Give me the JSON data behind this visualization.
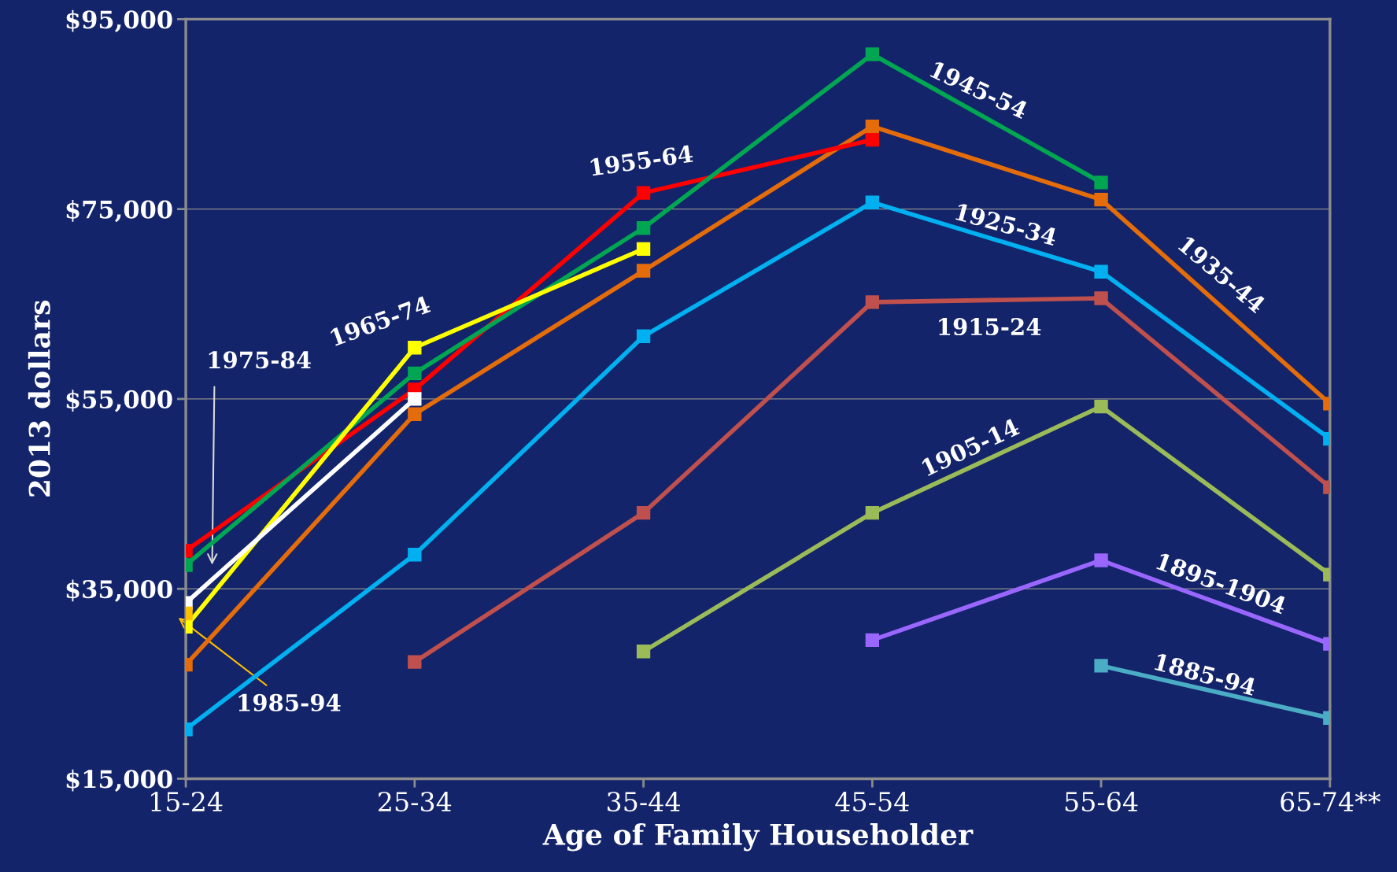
{
  "chart_data": {
    "type": "line",
    "xlabel": "Age of Family Householder",
    "ylabel": "2013 dollars",
    "categories": [
      "15-24",
      "25-34",
      "35-44",
      "45-54",
      "55-64",
      "65-74**"
    ],
    "ylim": [
      15000,
      95000
    ],
    "yticks": [
      {
        "value": 15000,
        "label": "$15,000"
      },
      {
        "value": 35000,
        "label": "$35,000"
      },
      {
        "value": 55000,
        "label": "$55,000"
      },
      {
        "value": 75000,
        "label": "$75,000"
      },
      {
        "value": 95000,
        "label": "$95,000"
      }
    ],
    "grid": "y",
    "legend": false,
    "marker": "square",
    "line_style": "solid",
    "series": [
      {
        "name": "1885-94",
        "color": "#4bacc6",
        "values": [
          null,
          null,
          null,
          null,
          26900,
          21400
        ]
      },
      {
        "name": "1895-1904",
        "color": "#9966ff",
        "values": [
          null,
          null,
          null,
          29600,
          38000,
          29200
        ]
      },
      {
        "name": "1905-14",
        "color": "#9bbb59",
        "values": [
          null,
          null,
          28400,
          43000,
          54200,
          36500
        ]
      },
      {
        "name": "1915-24",
        "color": "#c0504d",
        "values": [
          null,
          27300,
          43000,
          65200,
          65600,
          45700
        ]
      },
      {
        "name": "1925-34",
        "color": "#00b0f0",
        "values": [
          20200,
          38600,
          61600,
          75700,
          68400,
          50800
        ]
      },
      {
        "name": "1935-44",
        "color": "#e46c0a",
        "values": [
          27000,
          53400,
          68500,
          83700,
          76000,
          54500
        ]
      },
      {
        "name": "1955-64",
        "color": "#ff0000",
        "values": [
          39000,
          56000,
          76700,
          82300,
          null,
          null
        ]
      },
      {
        "name": "1945-54",
        "color": "#00a651",
        "values": [
          37500,
          57700,
          73000,
          91300,
          77800,
          null
        ]
      },
      {
        "name": "1965-74",
        "color": "#ffff00",
        "values": [
          31000,
          60400,
          70800,
          null,
          null,
          null
        ]
      },
      {
        "name": "1975-84",
        "color": "#ffffff",
        "values": [
          33500,
          55000,
          null,
          null,
          null,
          null
        ]
      },
      {
        "name": "1985-94",
        "color": "#ffc000",
        "values": [
          32400,
          null,
          null,
          null,
          null,
          null
        ]
      }
    ]
  }
}
